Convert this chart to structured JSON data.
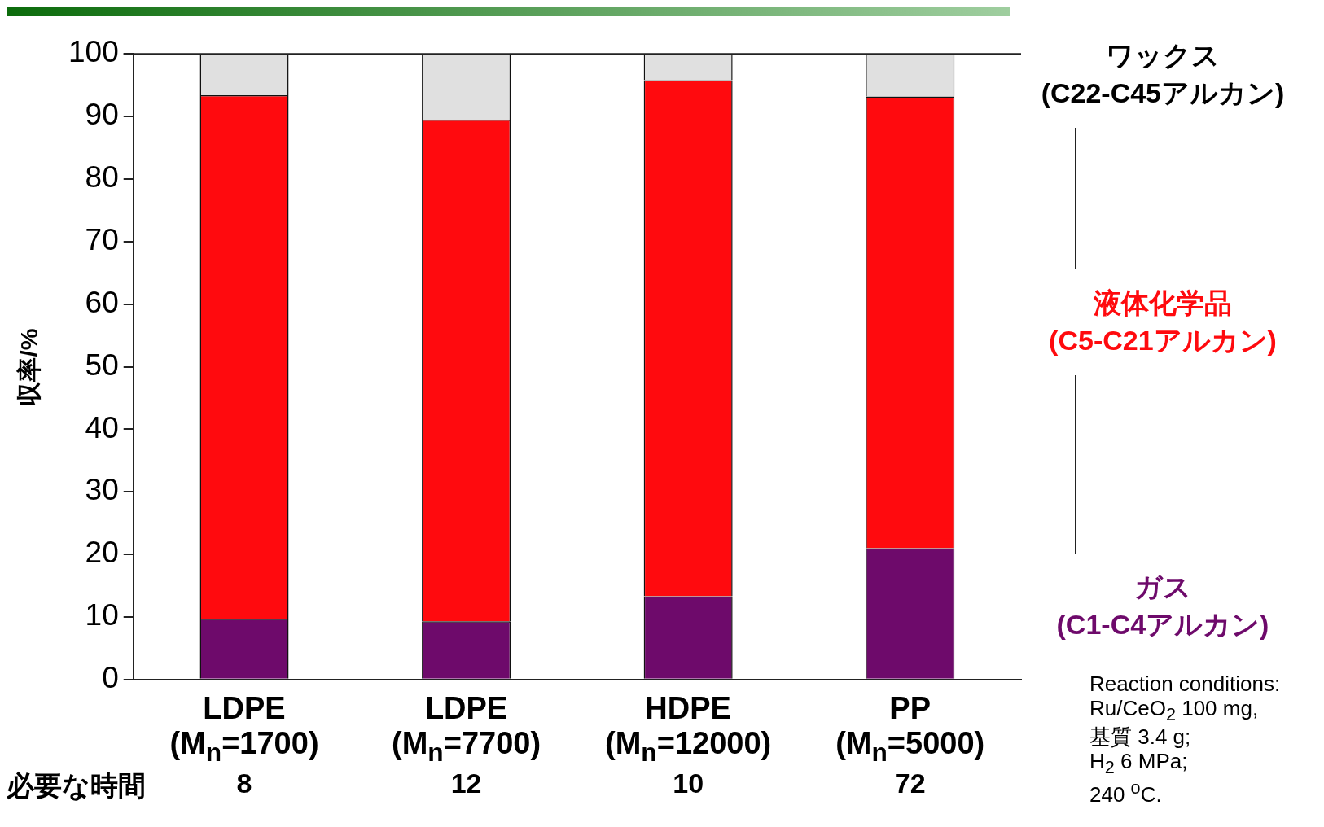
{
  "chart_data": {
    "type": "bar",
    "stacked": true,
    "categories": [
      "LDPE\n(M$_{n}$=1700)",
      "LDPE\n(M$_{n}$=7700)",
      "HDPE\n(M$_{n}$=12000)",
      "PP\n(M$_{n}$=5000)"
    ],
    "ylabel": "収率/%",
    "ylim": [
      0,
      100
    ],
    "yticks": [
      0,
      10,
      20,
      30,
      40,
      50,
      60,
      70,
      80,
      90,
      100
    ],
    "series": [
      {
        "name": "ガス\n(C1-C4アルカン)",
        "color": "#6e0a6b",
        "values": [
          9.7,
          9.3,
          13.3,
          21.0
        ]
      },
      {
        "name": "液体化学品\n(C5-C21アルカン)",
        "color": "#ff0a0e",
        "values": [
          83.7,
          80.2,
          82.5,
          72.2
        ]
      },
      {
        "name": "ワックス\n(C22-C45アルカン)",
        "color": "#e0e0e0",
        "values": [
          6.6,
          10.5,
          4.2,
          6.8
        ]
      }
    ],
    "legend": "right",
    "grid": false,
    "annotations": [
      "必要な時間",
      "8",
      "12",
      "10",
      "72",
      "Reaction conditions:\nRu/CeO$_{2}$ 100 mg,\n基質 3.4 g;\nH$_{2}$ 6 MPa;\n240 $^{o}$C."
    ]
  }
}
